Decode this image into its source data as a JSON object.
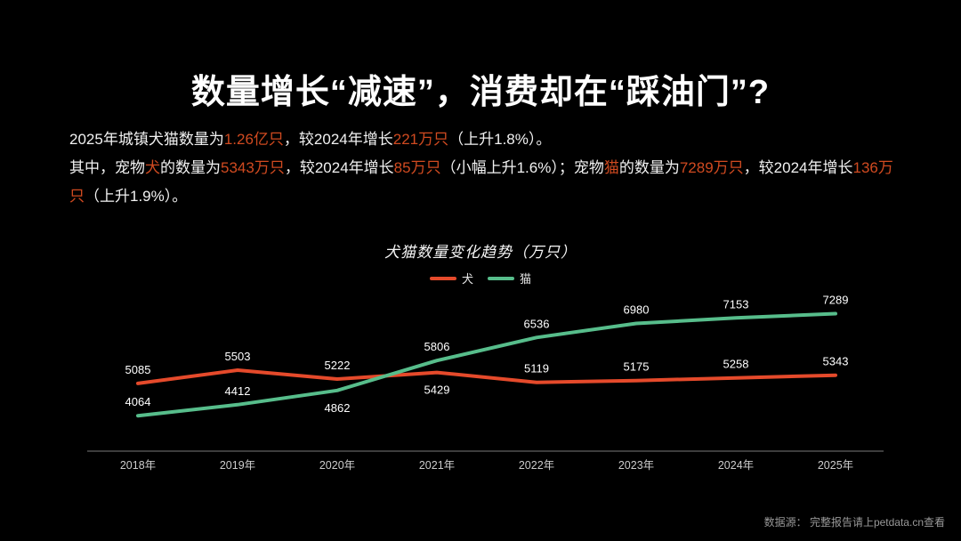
{
  "slide": {
    "title": "数量增长“减速”，消费却在“踩油门”?",
    "background_color": "#000000",
    "highlight_color": "#d04a20",
    "footer": {
      "text": "数据源： 完整报告请上petdata.cn查看"
    }
  },
  "intro": {
    "paragraphs": [
      {
        "segments": [
          {
            "text": "2025年城镇犬猫数量为",
            "highlight": false
          },
          {
            "text": "1.26亿只",
            "highlight": true
          },
          {
            "text": "，较2024年增长",
            "highlight": false
          },
          {
            "text": "221万只",
            "highlight": true
          },
          {
            "text": "（上升1.8%）。",
            "highlight": false
          }
        ]
      },
      {
        "segments": [
          {
            "text": "其中，宠物",
            "highlight": false
          },
          {
            "text": "犬",
            "highlight": true
          },
          {
            "text": "的数量为",
            "highlight": false
          },
          {
            "text": "5343万只",
            "highlight": true
          },
          {
            "text": "，较2024年增长",
            "highlight": false
          },
          {
            "text": "85万只",
            "highlight": true
          },
          {
            "text": "（小幅上升1.6%）；宠物",
            "highlight": false
          },
          {
            "text": "猫",
            "highlight": true
          },
          {
            "text": "的数量为",
            "highlight": false
          },
          {
            "text": "7289万只",
            "highlight": true
          },
          {
            "text": "，较2024年增长",
            "highlight": false
          },
          {
            "text": "136万只",
            "highlight": true
          },
          {
            "text": "（上升1.9%）。",
            "highlight": false
          }
        ]
      }
    ]
  },
  "chart_data": {
    "type": "line",
    "title": "犬猫数量变化趋势（万只）",
    "categories": [
      "2018年",
      "2019年",
      "2020年",
      "2021年",
      "2022年",
      "2023年",
      "2024年",
      "2025年"
    ],
    "series": [
      {
        "name": "犬",
        "color": "#e54a2b",
        "values": [
          5085,
          5503,
          5222,
          5429,
          5119,
          5175,
          5258,
          5343
        ],
        "label_below_indices": [
          3
        ]
      },
      {
        "name": "猫",
        "color": "#57bd8b",
        "values": [
          4064,
          4412,
          4862,
          5806,
          6536,
          6980,
          7153,
          7289
        ],
        "label_below_indices": [
          2
        ]
      }
    ],
    "ylim": [
      3900,
      7500
    ],
    "grid": false,
    "legend_position": "top-center",
    "value_labels_shown": true,
    "value_label_color": "#ffffff",
    "axis_label_color": "#cccccc",
    "axis_line_color": "#7a7a7a"
  }
}
